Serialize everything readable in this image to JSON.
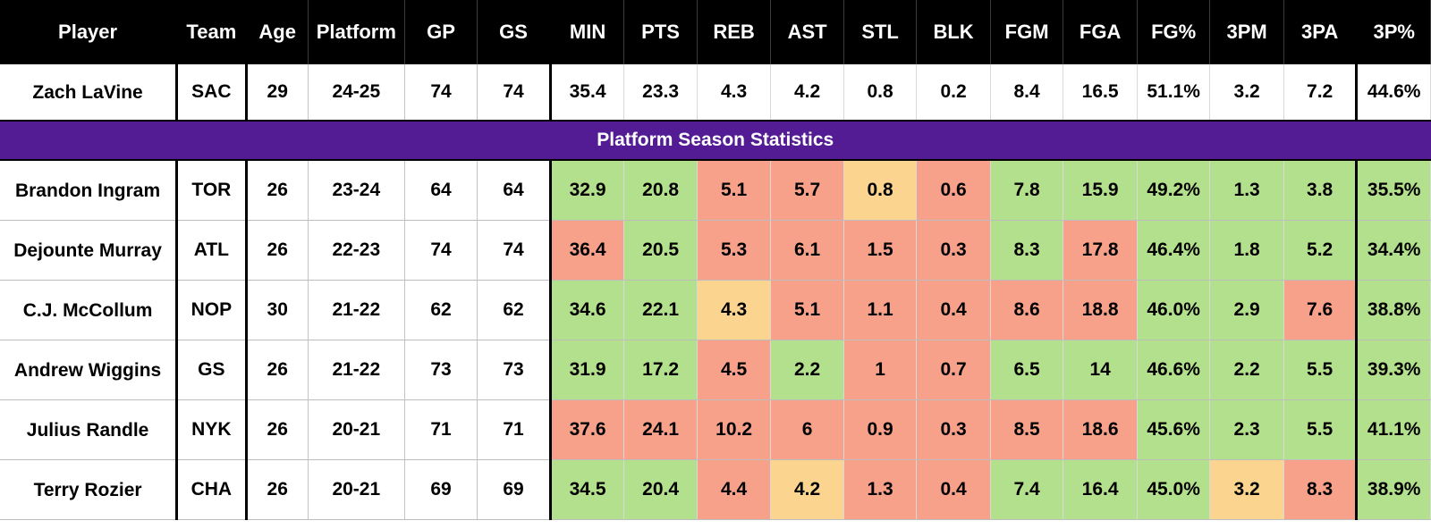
{
  "headers": [
    "Player",
    "Team",
    "Age",
    "Platform",
    "GP",
    "GS",
    "MIN",
    "PTS",
    "REB",
    "AST",
    "STL",
    "BLK",
    "FGM",
    "FGA",
    "FG%",
    "3PM",
    "3PA",
    "3P%"
  ],
  "subject": {
    "name": "Zach LaVine",
    "team": "SAC",
    "age": "29",
    "platform": "24-25",
    "gp": "74",
    "gs": "74",
    "stats": [
      "35.4",
      "23.3",
      "4.3",
      "4.2",
      "0.8",
      "0.2",
      "8.4",
      "16.5",
      "51.1%",
      "3.2",
      "7.2",
      "44.6%"
    ]
  },
  "banner": "Platform Season Statistics",
  "colors": {
    "good": "#b3e08c",
    "bad": "#f7a08a",
    "mid": "#fbd48f",
    "banner": "#531c94"
  },
  "rows": [
    {
      "name": "Brandon Ingram",
      "team": "TOR",
      "age": "26",
      "platform": "23-24",
      "gp": "64",
      "gs": "64",
      "stats": [
        "32.9",
        "20.8",
        "5.1",
        "5.7",
        "0.8",
        "0.6",
        "7.8",
        "15.9",
        "49.2%",
        "1.3",
        "3.8",
        "35.5%"
      ],
      "colors": [
        "good",
        "good",
        "bad",
        "bad",
        "mid",
        "bad",
        "good",
        "good",
        "good",
        "good",
        "good",
        "good"
      ]
    },
    {
      "name": "Dejounte Murray",
      "team": "ATL",
      "age": "26",
      "platform": "22-23",
      "gp": "74",
      "gs": "74",
      "stats": [
        "36.4",
        "20.5",
        "5.3",
        "6.1",
        "1.5",
        "0.3",
        "8.3",
        "17.8",
        "46.4%",
        "1.8",
        "5.2",
        "34.4%"
      ],
      "colors": [
        "bad",
        "good",
        "bad",
        "bad",
        "bad",
        "bad",
        "good",
        "bad",
        "good",
        "good",
        "good",
        "good"
      ]
    },
    {
      "name": "C.J. McCollum",
      "team": "NOP",
      "age": "30",
      "platform": "21-22",
      "gp": "62",
      "gs": "62",
      "stats": [
        "34.6",
        "22.1",
        "4.3",
        "5.1",
        "1.1",
        "0.4",
        "8.6",
        "18.8",
        "46.0%",
        "2.9",
        "7.6",
        "38.8%"
      ],
      "colors": [
        "good",
        "good",
        "mid",
        "bad",
        "bad",
        "bad",
        "bad",
        "bad",
        "good",
        "good",
        "bad",
        "good"
      ]
    },
    {
      "name": "Andrew Wiggins",
      "team": "GS",
      "age": "26",
      "platform": "21-22",
      "gp": "73",
      "gs": "73",
      "stats": [
        "31.9",
        "17.2",
        "4.5",
        "2.2",
        "1",
        "0.7",
        "6.5",
        "14",
        "46.6%",
        "2.2",
        "5.5",
        "39.3%"
      ],
      "colors": [
        "good",
        "good",
        "bad",
        "good",
        "bad",
        "bad",
        "good",
        "good",
        "good",
        "good",
        "good",
        "good"
      ]
    },
    {
      "name": "Julius Randle",
      "team": "NYK",
      "age": "26",
      "platform": "20-21",
      "gp": "71",
      "gs": "71",
      "stats": [
        "37.6",
        "24.1",
        "10.2",
        "6",
        "0.9",
        "0.3",
        "8.5",
        "18.6",
        "45.6%",
        "2.3",
        "5.5",
        "41.1%"
      ],
      "colors": [
        "bad",
        "bad",
        "bad",
        "bad",
        "bad",
        "bad",
        "bad",
        "bad",
        "good",
        "good",
        "good",
        "good"
      ]
    },
    {
      "name": "Terry Rozier",
      "team": "CHA",
      "age": "26",
      "platform": "20-21",
      "gp": "69",
      "gs": "69",
      "stats": [
        "34.5",
        "20.4",
        "4.4",
        "4.2",
        "1.3",
        "0.4",
        "7.4",
        "16.4",
        "45.0%",
        "3.2",
        "8.3",
        "38.9%"
      ],
      "colors": [
        "good",
        "good",
        "bad",
        "mid",
        "bad",
        "bad",
        "good",
        "good",
        "good",
        "mid",
        "bad",
        "good"
      ]
    }
  ]
}
